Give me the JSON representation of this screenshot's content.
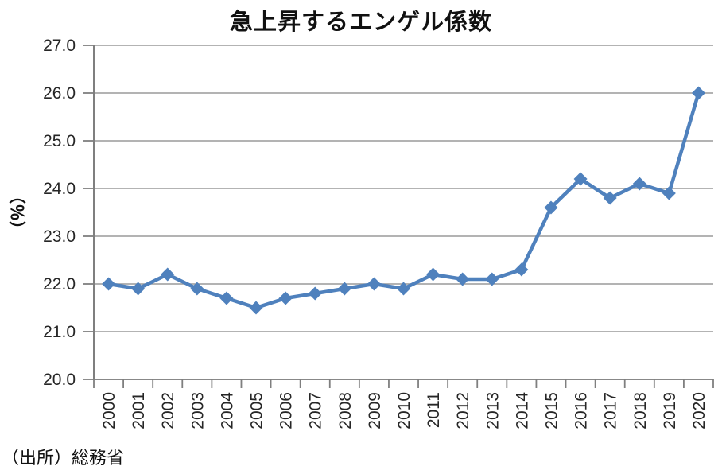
{
  "chart": {
    "title": "急上昇するエンゲル係数",
    "source": "（出所）総務省"
  },
  "chart_data": {
    "type": "line",
    "title": "急上昇するエンゲル係数",
    "xlabel": "",
    "ylabel": "（％）",
    "ylim": [
      20.0,
      27.0
    ],
    "ytick_step": 1.0,
    "ytick_labels": [
      "20.0",
      "21.0",
      "22.0",
      "23.0",
      "24.0",
      "25.0",
      "26.0",
      "27.0"
    ],
    "grid": true,
    "legend_position": "none",
    "source": "（出所）総務省",
    "categories": [
      "2000",
      "2001",
      "2002",
      "2003",
      "2004",
      "2005",
      "2006",
      "2007",
      "2008",
      "2009",
      "2010",
      "2011",
      "2012",
      "2013",
      "2014",
      "2015",
      "2016",
      "2017",
      "2018",
      "2019",
      "2020"
    ],
    "values": [
      22.0,
      21.9,
      22.2,
      21.9,
      21.7,
      21.5,
      21.7,
      21.8,
      21.9,
      22.0,
      21.9,
      22.2,
      22.1,
      22.1,
      22.3,
      23.6,
      24.2,
      23.8,
      24.1,
      23.9,
      26.0
    ],
    "marker": "diamond",
    "colors": {
      "line": "#4F81BD",
      "gridline": "#9A9A9A",
      "axis": "#7F7F7F",
      "text": "#262626"
    }
  }
}
